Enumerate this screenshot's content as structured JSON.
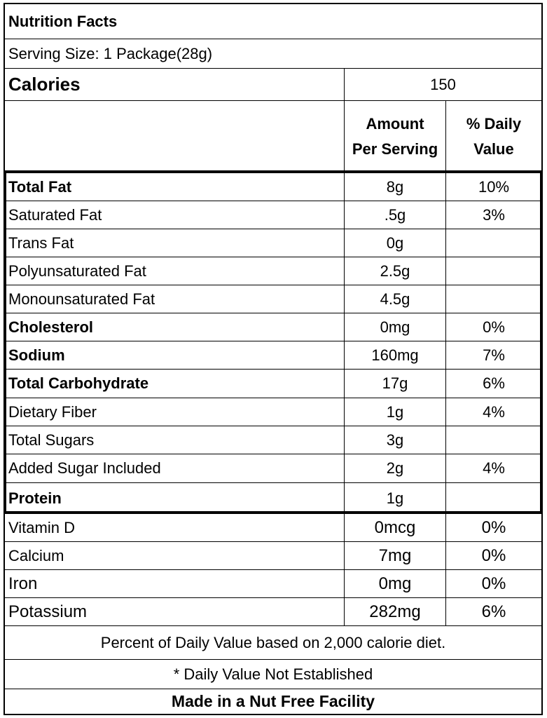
{
  "title": "Nutrition Facts",
  "serving_size": "Serving Size: 1 Package(28g)",
  "calories": {
    "label": "Calories",
    "value": "150"
  },
  "headers": {
    "amount_line1": "Amount",
    "amount_line2": "Per Serving",
    "dv_line1": "% Daily",
    "dv_line2": "Value"
  },
  "nutrients": [
    {
      "name": "Total Fat",
      "amount": "8g",
      "dv": "10%"
    },
    {
      "name": "Saturated Fat",
      "amount": ".5g",
      "dv": "3%"
    },
    {
      "name": "Trans Fat",
      "amount": "0g",
      "dv": ""
    },
    {
      "name": "Polyunsaturated Fat",
      "amount": "2.5g",
      "dv": ""
    },
    {
      "name": "Monounsaturated Fat",
      "amount": "4.5g",
      "dv": ""
    },
    {
      "name": "Cholesterol",
      "amount": "0mg",
      "dv": "0%"
    },
    {
      "name": "Sodium",
      "amount": "160mg",
      "dv": "7%"
    },
    {
      "name": "Total Carbohydrate",
      "amount": "17g",
      "dv": "6%"
    },
    {
      "name": "Dietary Fiber",
      "amount": "1g",
      "dv": "4%"
    },
    {
      "name": "Total Sugars",
      "amount": "3g",
      "dv": ""
    },
    {
      "name": "Added Sugar Included",
      "amount": "2g",
      "dv": "4%"
    },
    {
      "name": "Protein",
      "amount": "1g",
      "dv": ""
    }
  ],
  "vitamins": [
    {
      "name": "Vitamin D",
      "amount": "0mcg",
      "dv": "0%"
    },
    {
      "name": "Calcium",
      "amount": "7mg",
      "dv": "0%"
    },
    {
      "name": "Iron",
      "amount": "0mg",
      "dv": "0%"
    },
    {
      "name": "Potassium",
      "amount": "282mg",
      "dv": "6%"
    }
  ],
  "footnote_dv": "Percent of Daily Value based on 2,000 calorie diet.",
  "footnote_not_established": "* Daily Value Not Established",
  "facility_note": "Made in a Nut Free Facility"
}
